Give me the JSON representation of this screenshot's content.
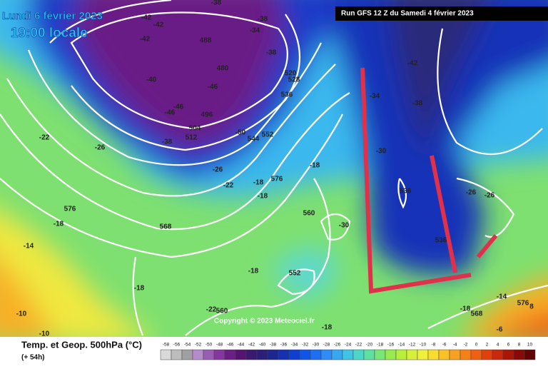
{
  "header": {
    "date": "Lundi 6 février 2023",
    "time": "19:00 locale",
    "run": "Run GFS 12 Z du Samedi 4 février 2023"
  },
  "map": {
    "copyright": "Copyright © 2023 Meteociel.fr",
    "labels": [
      "-42",
      "-42",
      "-42",
      "-38",
      "-38",
      "-34",
      "488",
      "-38",
      "-42",
      "480",
      "520",
      "528",
      "-40",
      "-46",
      "536",
      "-34",
      "-46",
      "-46",
      "496",
      "504",
      "-38",
      "-50",
      "552",
      "512",
      "544",
      "-38",
      "-22",
      "-26",
      "-30",
      "-26",
      "-18",
      "576",
      "-22",
      "-18",
      "-18",
      "536",
      "-26",
      "-26",
      "576",
      "560",
      "-18",
      "-30",
      "568",
      "536",
      "-14",
      "-18",
      "552",
      "-18",
      "-14",
      "576",
      "-22",
      "560",
      "-18",
      "568",
      "-10",
      "-6",
      "-10",
      "-18",
      "8"
    ]
  },
  "legend": {
    "title": "Temp. et Geop. 500hPa (°C)",
    "lead": "(+ 54h)",
    "values": [
      -58,
      -56,
      -54,
      -52,
      -50,
      -48,
      -46,
      -44,
      -42,
      -40,
      -38,
      -36,
      -34,
      -32,
      -30,
      -28,
      -26,
      -24,
      -22,
      -20,
      -18,
      -16,
      -14,
      -12,
      -10,
      -8,
      -6,
      -4,
      -2,
      0,
      2,
      4,
      6,
      8,
      10
    ],
    "colors": [
      "#d9d9d9",
      "#bdbdbd",
      "#a0a0a0",
      "#b48cc8",
      "#9a5db5",
      "#83379f",
      "#6b1f86",
      "#561472",
      "#3a1a6e",
      "#2b1f7a",
      "#1d2590",
      "#1530b0",
      "#0f3fd0",
      "#1155e6",
      "#1e6ef0",
      "#2d8cf5",
      "#36a8f0",
      "#40c4e6",
      "#4dd6c8",
      "#5de0a0",
      "#7ae678",
      "#99ea4f",
      "#b8ee3c",
      "#d6f03a",
      "#eef03c",
      "#f8dc30",
      "#fac028",
      "#f8a020",
      "#f58018",
      "#f06012",
      "#e0400e",
      "#c8280c",
      "#a81608",
      "#880a06",
      "#600404"
    ]
  }
}
